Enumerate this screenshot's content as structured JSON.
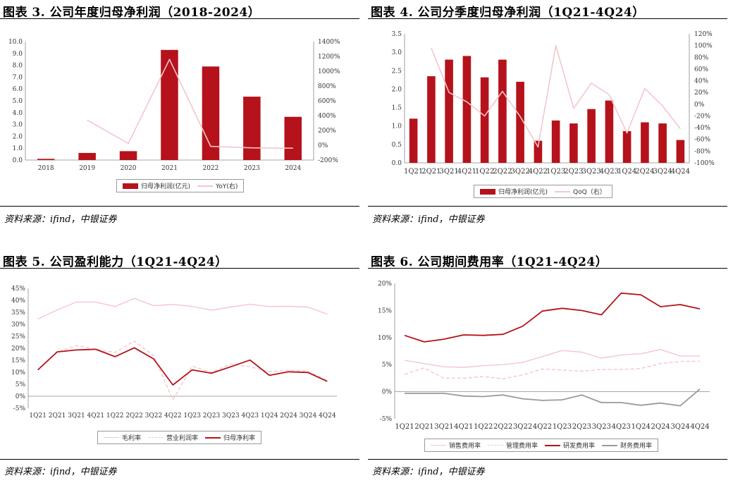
{
  "panels": {
    "p1": {
      "title": "图表 3. 公司年度归母净利润（2018-2024）",
      "source": "资料来源：ifind，中银证券",
      "legend": [
        "归母净利润(亿元)",
        "YoY(右)"
      ]
    },
    "p2": {
      "title": "图表 4. 公司分季度归母净利润（1Q21-4Q24）",
      "source": "资料来源：ifind，中银证券",
      "legend": [
        "归母净利润(亿元)",
        "QoQ（右）"
      ]
    },
    "p3": {
      "title": "图表 5. 公司盈利能力（1Q21-4Q24）",
      "source": "资料来源：ifind，中银证券",
      "legend": [
        "毛利率",
        "营业利润率",
        "归母净利率"
      ]
    },
    "p4": {
      "title": "图表 6. 公司期间费用率（1Q21-4Q24）",
      "source": "资料来源：ifind，中银证券",
      "legend": [
        "销售费用率",
        "管理费用率",
        "研发费用率",
        "财务费用率"
      ]
    }
  },
  "colors": {
    "bar": "#b5121b",
    "pink": "#f4c6cc",
    "dark_red": "#b5121b",
    "gray": "#9a9a9a"
  },
  "chart_data": [
    {
      "type": "bar",
      "categories": [
        "2018",
        "2019",
        "2020",
        "2021",
        "2022",
        "2023",
        "2024"
      ],
      "series": [
        {
          "name": "归母净利润(亿元)",
          "axis": "left",
          "type": "bar",
          "values": [
            0.1,
            0.6,
            0.75,
            9.3,
            7.9,
            5.35,
            3.65
          ]
        },
        {
          "name": "YoY(右)",
          "axis": "right",
          "type": "line",
          "values": [
            null,
            340,
            25,
            1160,
            -15,
            -35,
            -40
          ]
        }
      ],
      "ylim": [
        0,
        10
      ],
      "yticks": [
        "0.0",
        "1.0",
        "2.0",
        "3.0",
        "4.0",
        "5.0",
        "6.0",
        "7.0",
        "8.0",
        "9.0",
        "10.0"
      ],
      "y2lim": [
        -200,
        1400
      ],
      "y2ticks": [
        "-200%",
        "0%",
        "200%",
        "400%",
        "600%",
        "800%",
        "1000%",
        "1200%",
        "1400%"
      ]
    },
    {
      "type": "bar",
      "categories": [
        "1Q21",
        "2Q21",
        "3Q21",
        "4Q21",
        "1Q22",
        "2Q22",
        "3Q22",
        "4Q22",
        "1Q23",
        "2Q23",
        "3Q23",
        "4Q23",
        "1Q24",
        "2Q24",
        "3Q24",
        "4Q24"
      ],
      "series": [
        {
          "name": "归母净利润(亿元)",
          "axis": "left",
          "type": "bar",
          "values": [
            1.2,
            2.35,
            2.8,
            2.9,
            2.32,
            2.8,
            2.2,
            0.6,
            1.15,
            1.07,
            1.46,
            1.69,
            0.86,
            1.1,
            1.07,
            0.62
          ]
        },
        {
          "name": "QoQ（右）",
          "axis": "right",
          "type": "line",
          "values": [
            null,
            96,
            20,
            4,
            -20,
            22,
            -21,
            -73,
            100,
            -7,
            36,
            16,
            -49,
            27,
            -3,
            -42
          ]
        }
      ],
      "ylim": [
        0,
        3.5
      ],
      "yticks": [
        "0.0",
        "0.5",
        "1.0",
        "1.5",
        "2.0",
        "2.5",
        "3.0",
        "3.5"
      ],
      "y2lim": [
        -100,
        120
      ],
      "y2ticks": [
        "-100%",
        "-80%",
        "-60%",
        "-40%",
        "-20%",
        "0%",
        "20%",
        "40%",
        "60%",
        "80%",
        "100%",
        "120%"
      ]
    },
    {
      "type": "line",
      "categories": [
        "1Q21",
        "2Q21",
        "3Q21",
        "4Q21",
        "1Q22",
        "2Q22",
        "3Q22",
        "4Q22",
        "1Q23",
        "2Q23",
        "3Q23",
        "4Q23",
        "1Q24",
        "2Q24",
        "3Q24",
        "4Q24"
      ],
      "series": [
        {
          "name": "毛利率",
          "values": [
            32.2,
            36.0,
            39.3,
            39.3,
            37.4,
            40.8,
            37.8,
            38.3,
            37.5,
            35.9,
            37.2,
            38.4,
            37.4,
            37.5,
            37.2,
            34.2
          ]
        },
        {
          "name": "营业利润率",
          "values": [
            11.0,
            18.3,
            21.2,
            19.5,
            18.3,
            23.0,
            17.0,
            -1.5,
            12.5,
            10.0,
            13.4,
            12.3,
            10.2,
            10.9,
            10.5,
            6.5
          ]
        },
        {
          "name": "归母净利率",
          "values": [
            11.0,
            18.5,
            19.3,
            19.6,
            16.5,
            20.2,
            15.6,
            4.7,
            11.0,
            9.6,
            12.3,
            15.1,
            8.7,
            10.2,
            9.9,
            6.2
          ]
        }
      ],
      "ylim": [
        -5,
        45
      ],
      "yticks": [
        "-5%",
        "0%",
        "5%",
        "10%",
        "15%",
        "20%",
        "25%",
        "30%",
        "35%",
        "40%",
        "45%"
      ]
    },
    {
      "type": "line",
      "categories": [
        "1Q21",
        "2Q21",
        "3Q21",
        "4Q21",
        "1Q22",
        "2Q22",
        "3Q22",
        "4Q22",
        "1Q23",
        "2Q23",
        "3Q23",
        "4Q23",
        "1Q24",
        "2Q24",
        "3Q24",
        "4Q24"
      ],
      "series": [
        {
          "name": "销售费用率",
          "values": [
            5.8,
            5.2,
            4.6,
            4.5,
            4.8,
            5.0,
            5.4,
            6.5,
            7.6,
            7.3,
            6.2,
            6.8,
            7.0,
            7.8,
            6.6,
            6.6
          ]
        },
        {
          "name": "管理费用率",
          "values": [
            3.2,
            4.4,
            2.5,
            2.5,
            2.8,
            2.4,
            3.1,
            4.2,
            4.0,
            3.8,
            4.1,
            4.1,
            4.3,
            5.2,
            5.6,
            5.6
          ]
        },
        {
          "name": "研发费用率",
          "values": [
            10.4,
            9.2,
            9.7,
            10.5,
            10.4,
            10.6,
            12.1,
            14.9,
            15.4,
            15.0,
            14.2,
            18.2,
            17.9,
            15.7,
            16.1,
            15.3
          ]
        },
        {
          "name": "财务费用率",
          "values": [
            -0.3,
            -0.3,
            -0.3,
            -0.8,
            -0.9,
            -0.6,
            -1.3,
            -1.6,
            -1.5,
            -0.6,
            -2.0,
            -2.0,
            -2.5,
            -2.1,
            -2.6,
            0.5
          ]
        }
      ],
      "ylim": [
        -5,
        20
      ],
      "yticks": [
        "-5%",
        "0%",
        "5%",
        "10%",
        "15%",
        "20%"
      ]
    }
  ]
}
